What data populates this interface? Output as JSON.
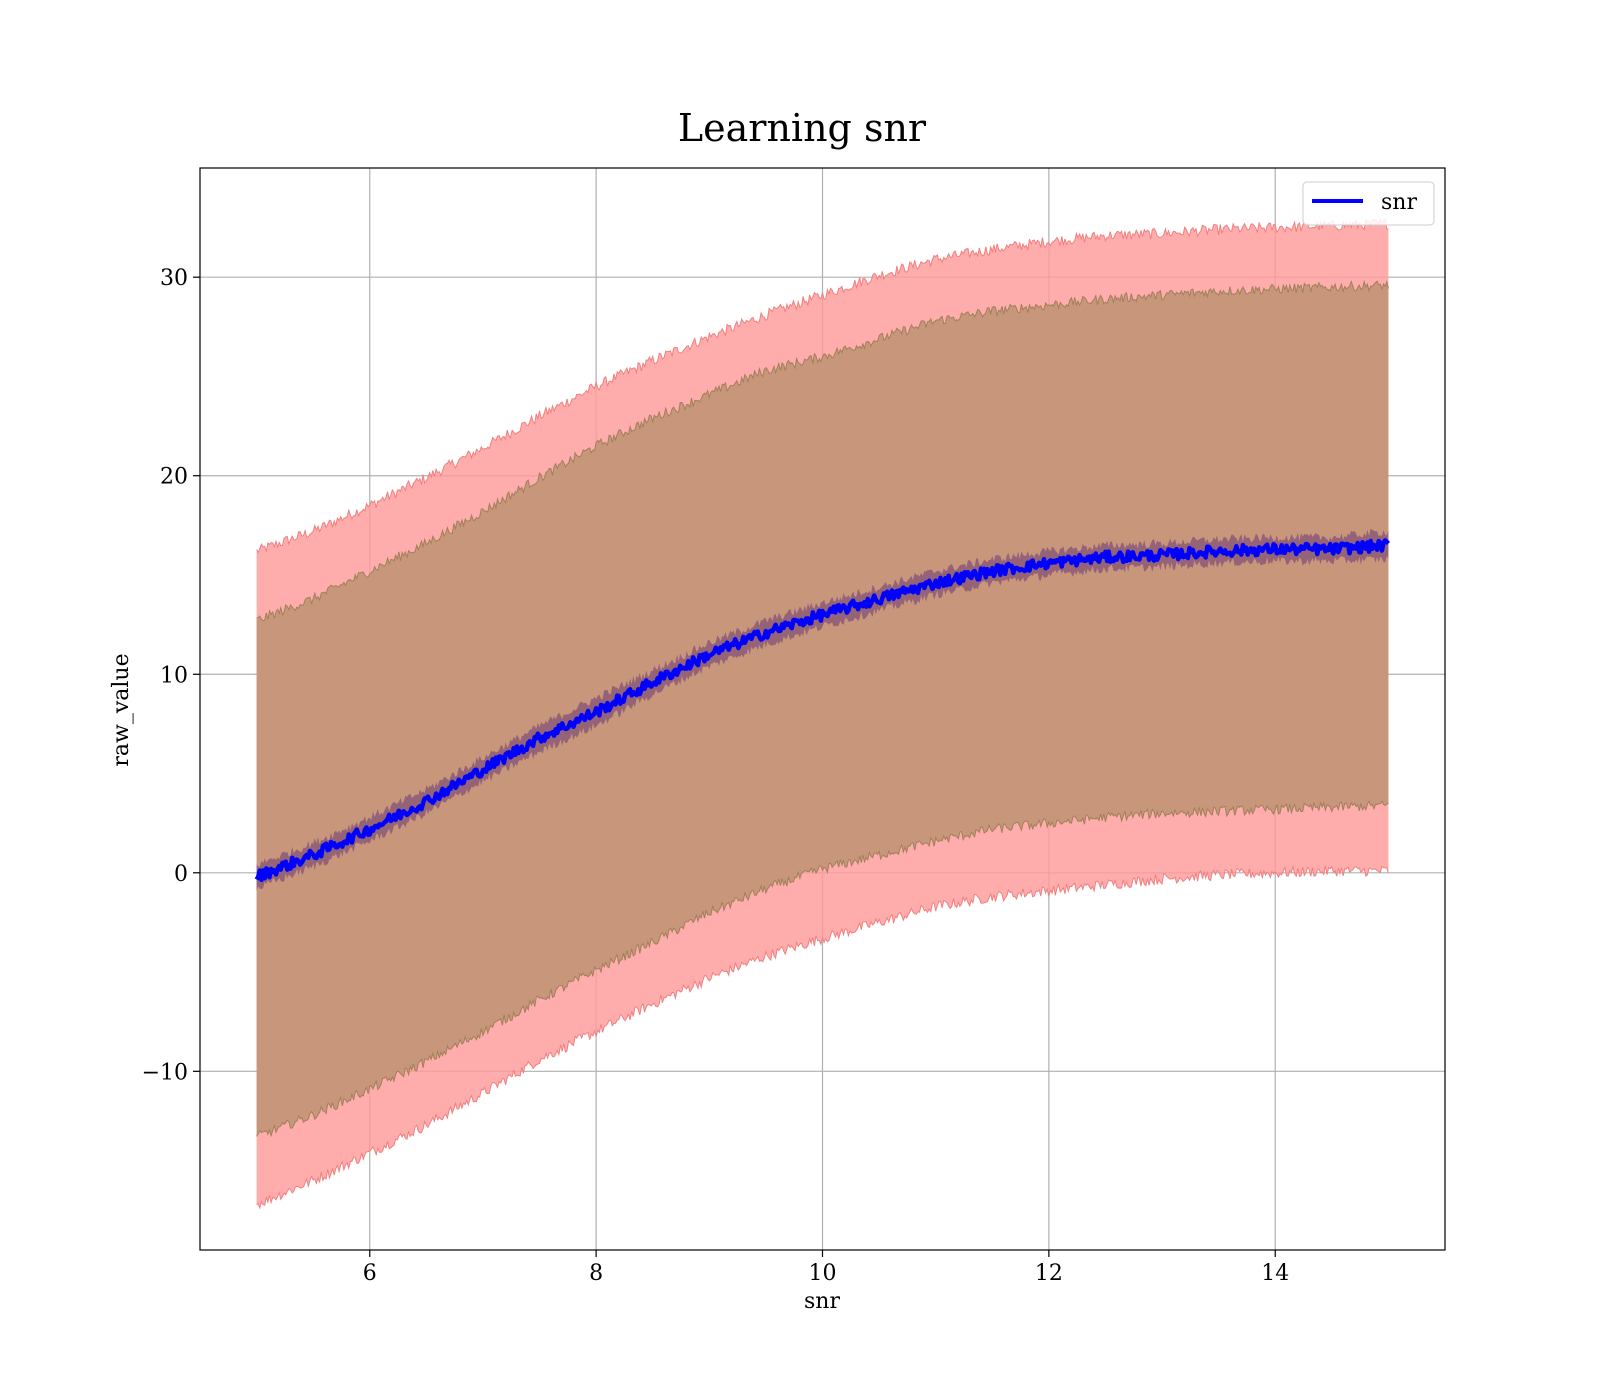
{
  "chart_data": {
    "type": "line",
    "title": "Learning snr",
    "xlabel": "snr",
    "ylabel": "raw_value",
    "xlim": [
      4.5,
      15.5
    ],
    "ylim": [
      -19,
      35.5
    ],
    "xticks": [
      6,
      8,
      10,
      12,
      14
    ],
    "yticks": [
      -10,
      0,
      10,
      20,
      30
    ],
    "grid": true,
    "legend": {
      "position": "top-right",
      "entries": [
        "snr"
      ]
    },
    "x": [
      5.0,
      5.5,
      6.0,
      6.5,
      7.0,
      7.5,
      8.0,
      8.5,
      9.0,
      9.5,
      10.0,
      10.5,
      11.0,
      11.5,
      12.0,
      12.5,
      13.0,
      13.5,
      14.0,
      14.5,
      15.0
    ],
    "series": [
      {
        "name": "snr",
        "role": "mean",
        "color": "#0000ff",
        "values": [
          -0.2,
          0.9,
          2.2,
          3.6,
          5.2,
          6.8,
          8.1,
          9.6,
          11.0,
          12.1,
          13.0,
          13.8,
          14.6,
          15.2,
          15.6,
          15.9,
          16.0,
          16.2,
          16.3,
          16.3,
          16.5
        ]
      },
      {
        "role": "band-inner",
        "lower": [
          -0.8,
          0.3,
          1.6,
          3.0,
          4.6,
          6.1,
          7.4,
          9.0,
          10.4,
          11.5,
          12.4,
          13.2,
          14.0,
          14.6,
          15.0,
          15.3,
          15.4,
          15.6,
          15.7,
          15.7,
          15.8
        ],
        "upper": [
          0.4,
          1.5,
          2.8,
          4.2,
          5.8,
          7.4,
          8.8,
          10.2,
          11.6,
          12.7,
          13.6,
          14.4,
          15.2,
          15.8,
          16.2,
          16.5,
          16.6,
          16.8,
          16.9,
          16.9,
          17.2
        ]
      },
      {
        "role": "band-middle",
        "lower": [
          -13.3,
          -12.2,
          -10.9,
          -9.5,
          -8.0,
          -6.4,
          -4.9,
          -3.5,
          -2.0,
          -0.8,
          0.2,
          0.9,
          1.6,
          2.2,
          2.5,
          2.8,
          3.0,
          3.1,
          3.2,
          3.3,
          3.4
        ],
        "upper": [
          12.7,
          13.8,
          15.2,
          16.6,
          18.2,
          19.9,
          21.5,
          22.9,
          24.1,
          25.3,
          26.0,
          26.9,
          27.8,
          28.3,
          28.6,
          28.9,
          29.1,
          29.3,
          29.4,
          29.5,
          29.6
        ]
      },
      {
        "role": "band-outer",
        "lower": [
          -16.7,
          -15.5,
          -14.1,
          -12.7,
          -11.1,
          -9.4,
          -8.0,
          -6.6,
          -5.3,
          -4.2,
          -3.3,
          -2.5,
          -1.7,
          -1.2,
          -0.9,
          -0.6,
          -0.3,
          -0.1,
          0.0,
          0.1,
          0.1
        ],
        "upper": [
          16.2,
          17.2,
          18.5,
          19.9,
          21.4,
          23.0,
          24.5,
          25.8,
          27.0,
          28.1,
          29.1,
          30.1,
          30.9,
          31.4,
          31.8,
          32.1,
          32.2,
          32.4,
          32.5,
          32.6,
          32.7
        ]
      }
    ],
    "colors": {
      "line": "#0000ff",
      "outer_band": "#ff9a9a",
      "outer_edge": "#f08080",
      "middle_band": "#c8967a",
      "middle_edge": "#a0805a",
      "inner_band": "#8c5a78",
      "grid": "#b0b0b0"
    }
  }
}
